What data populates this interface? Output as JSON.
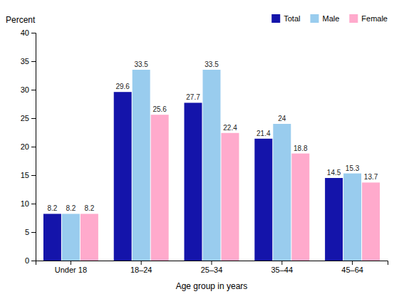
{
  "chart_data": {
    "type": "bar",
    "x_label": "Age group in years",
    "y_label": "Percent",
    "categories": [
      "Under 18",
      "18–24",
      "25–34",
      "35–44",
      "45–64"
    ],
    "series": [
      {
        "name": "Total",
        "color": "#1414aa",
        "values": [
          8.2,
          29.6,
          27.7,
          21.4,
          14.5
        ]
      },
      {
        "name": "Male",
        "color": "#99ccee",
        "values": [
          8.2,
          33.5,
          33.5,
          24.0,
          15.3
        ]
      },
      {
        "name": "Female",
        "color": "#ffaacc",
        "values": [
          8.2,
          25.6,
          22.4,
          18.8,
          13.7
        ]
      }
    ],
    "ylim": [
      0,
      40
    ],
    "yticks": [
      0,
      5,
      10,
      15,
      20,
      25,
      30,
      35,
      40
    ],
    "data_labels": true,
    "legend": "upper-right",
    "grid": false
  }
}
